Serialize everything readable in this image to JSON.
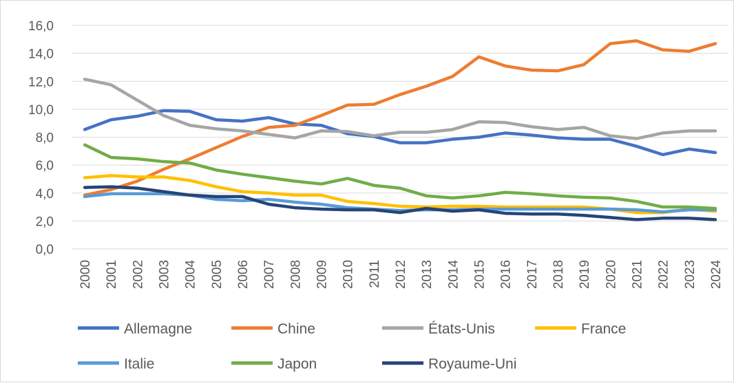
{
  "chart_data": {
    "type": "line",
    "title": "",
    "xlabel": "",
    "ylabel": "",
    "ylim": [
      0,
      16
    ],
    "y_ticks": [
      "0,0",
      "2,0",
      "4,0",
      "6,0",
      "8,0",
      "10,0",
      "12,0",
      "14,0",
      "16,0"
    ],
    "grid": "horizontal",
    "legend_position": "bottom",
    "categories": [
      "2000",
      "2001",
      "2002",
      "2003",
      "2004",
      "2005",
      "2006",
      "2007",
      "2008",
      "2009",
      "2010",
      "2011",
      "2012",
      "2013",
      "2014",
      "2015",
      "2016",
      "2017",
      "2018",
      "2019",
      "2020",
      "2021",
      "2022",
      "2023",
      "2024"
    ],
    "series": [
      {
        "name": "Allemagne",
        "color": "#4472C4",
        "values": [
          8.55,
          9.25,
          9.5,
          9.9,
          9.85,
          9.25,
          9.15,
          9.4,
          8.95,
          8.85,
          8.25,
          8.05,
          7.6,
          7.6,
          7.85,
          8.0,
          8.3,
          8.15,
          7.95,
          7.85,
          7.85,
          7.35,
          6.75,
          7.15,
          6.9
        ]
      },
      {
        "name": "Chine",
        "color": "#ED7D31",
        "values": [
          3.85,
          4.25,
          4.85,
          5.7,
          6.45,
          7.25,
          8.05,
          8.7,
          8.85,
          9.55,
          10.3,
          10.35,
          11.05,
          11.65,
          12.35,
          13.75,
          13.1,
          12.8,
          12.75,
          13.2,
          14.7,
          14.9,
          14.25,
          14.15,
          14.7
        ]
      },
      {
        "name": "États-Unis",
        "color": "#A5A5A5",
        "values": [
          12.15,
          11.75,
          10.65,
          9.55,
          8.85,
          8.6,
          8.45,
          8.2,
          7.95,
          8.45,
          8.4,
          8.1,
          8.35,
          8.35,
          8.55,
          9.1,
          9.05,
          8.75,
          8.55,
          8.7,
          8.1,
          7.9,
          8.3,
          8.45,
          8.45
        ]
      },
      {
        "name": "France",
        "color": "#FFC000",
        "values": [
          5.1,
          5.25,
          5.15,
          5.15,
          4.9,
          4.45,
          4.1,
          4.0,
          3.85,
          3.85,
          3.4,
          3.25,
          3.05,
          3.0,
          3.05,
          3.05,
          3.0,
          3.0,
          3.0,
          3.0,
          2.85,
          2.6,
          2.6,
          2.85,
          2.7
        ]
      },
      {
        "name": "Italie",
        "color": "#5B9BD5",
        "values": [
          3.75,
          3.95,
          3.95,
          3.95,
          3.85,
          3.55,
          3.45,
          3.55,
          3.35,
          3.2,
          2.95,
          2.85,
          2.75,
          2.8,
          2.8,
          2.85,
          2.85,
          2.85,
          2.85,
          2.85,
          2.85,
          2.8,
          2.65,
          2.8,
          2.8
        ]
      },
      {
        "name": "Japon",
        "color": "#70AD47",
        "values": [
          7.45,
          6.55,
          6.45,
          6.25,
          6.15,
          5.65,
          5.35,
          5.1,
          4.85,
          4.65,
          5.05,
          4.55,
          4.35,
          3.8,
          3.65,
          3.8,
          4.05,
          3.95,
          3.8,
          3.7,
          3.65,
          3.4,
          3.0,
          3.0,
          2.9
        ]
      },
      {
        "name": "Royaume-Uni",
        "color": "#264478",
        "values": [
          4.4,
          4.45,
          4.35,
          4.1,
          3.85,
          3.75,
          3.75,
          3.2,
          2.95,
          2.85,
          2.8,
          2.8,
          2.6,
          2.9,
          2.7,
          2.8,
          2.55,
          2.5,
          2.5,
          2.4,
          2.25,
          2.1,
          2.2,
          2.2,
          2.1
        ]
      }
    ]
  }
}
